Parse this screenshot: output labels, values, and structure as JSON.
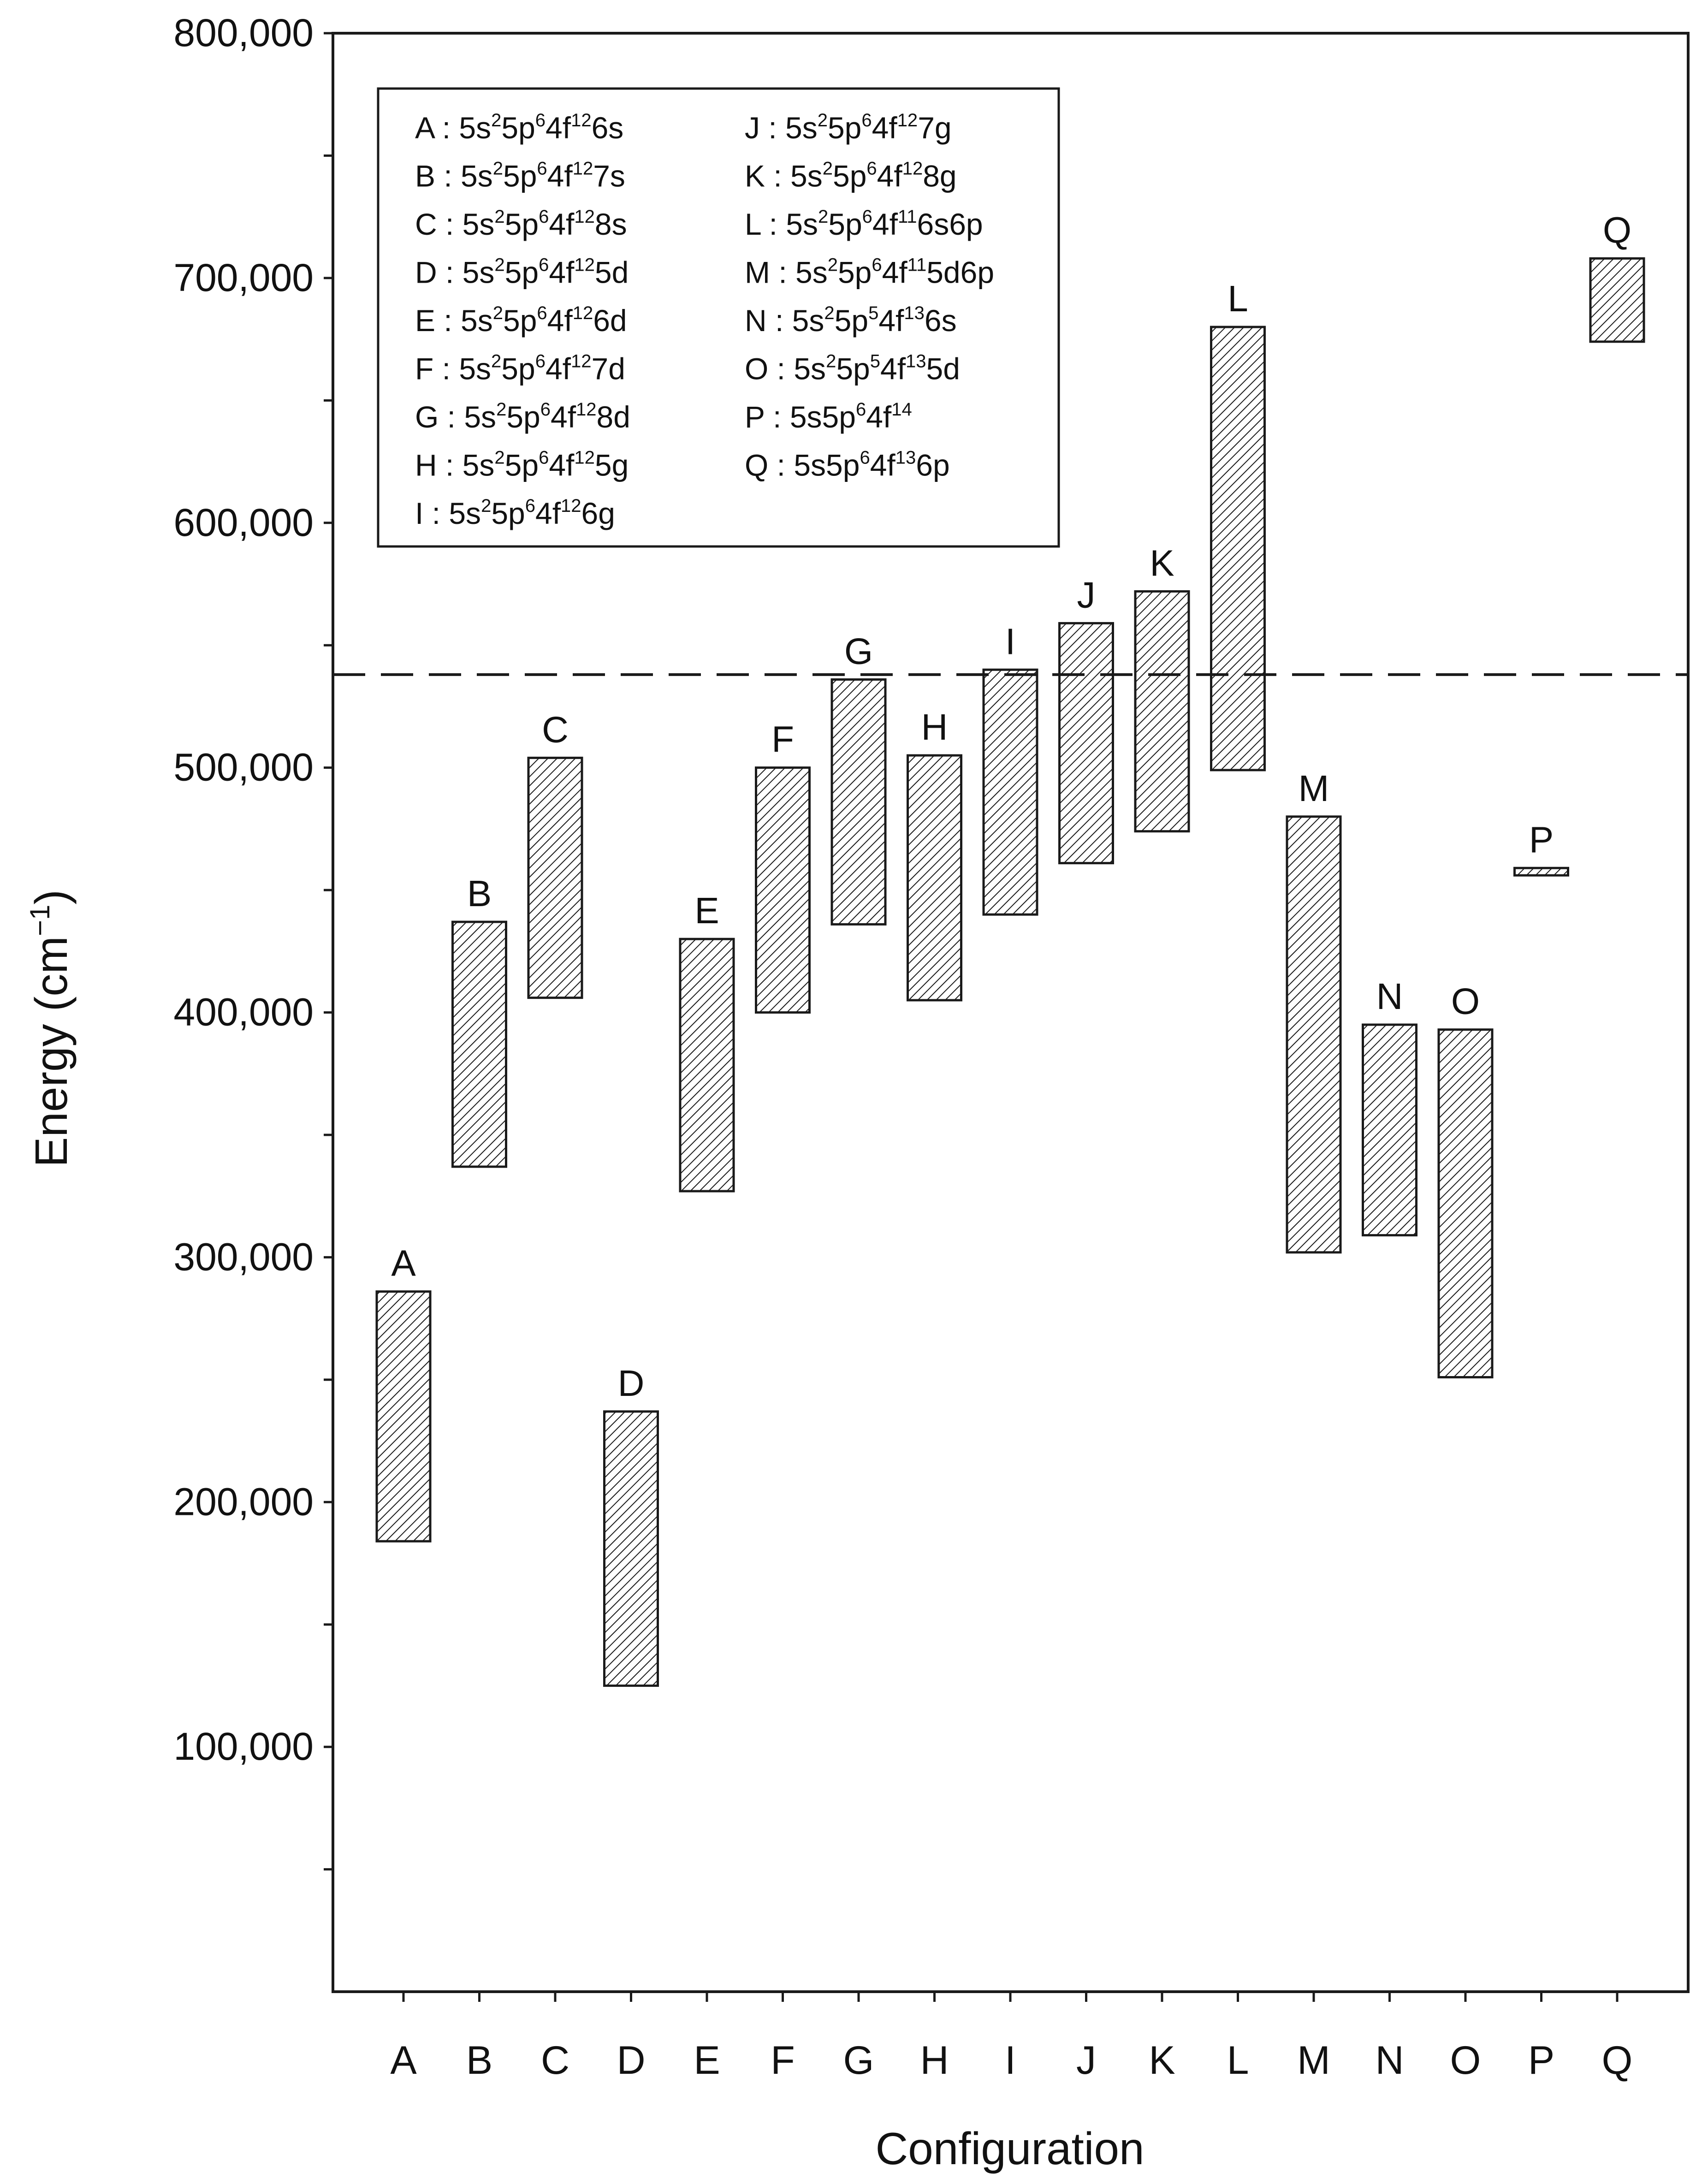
{
  "chart_data": {
    "type": "range_bar",
    "xlabel": "Configuration",
    "ylabel": "Energy (cm",
    "ylabel_sup": "−1",
    "ylabel_close": ")",
    "ylim": [
      0,
      800000
    ],
    "yticks": [
      100000,
      200000,
      300000,
      400000,
      500000,
      600000,
      700000,
      800000
    ],
    "ytick_labels": [
      "100,000",
      "200,000",
      "300,000",
      "400,000",
      "500,000",
      "600,000",
      "700,000",
      "800,000"
    ],
    "categories": [
      "A",
      "B",
      "C",
      "D",
      "E",
      "F",
      "G",
      "H",
      "I",
      "J",
      "K",
      "L",
      "M",
      "N",
      "O",
      "P",
      "Q"
    ],
    "ranges": [
      {
        "label": "A",
        "low": 184000,
        "high": 286000
      },
      {
        "label": "B",
        "low": 337000,
        "high": 437000
      },
      {
        "label": "C",
        "low": 406000,
        "high": 504000
      },
      {
        "label": "D",
        "low": 125000,
        "high": 237000
      },
      {
        "label": "E",
        "low": 327000,
        "high": 430000
      },
      {
        "label": "F",
        "low": 400000,
        "high": 500000
      },
      {
        "label": "G",
        "low": 436000,
        "high": 536000
      },
      {
        "label": "H",
        "low": 405000,
        "high": 505000
      },
      {
        "label": "I",
        "low": 440000,
        "high": 540000
      },
      {
        "label": "J",
        "low": 461000,
        "high": 559000
      },
      {
        "label": "K",
        "low": 474000,
        "high": 572000
      },
      {
        "label": "L",
        "low": 499000,
        "high": 680000
      },
      {
        "label": "M",
        "low": 302000,
        "high": 480000
      },
      {
        "label": "N",
        "low": 309000,
        "high": 395000
      },
      {
        "label": "O",
        "low": 251000,
        "high": 393000
      },
      {
        "label": "P",
        "low": 456000,
        "high": 459000
      },
      {
        "label": "Q",
        "low": 674000,
        "high": 708000
      }
    ],
    "reference_line": {
      "y": 538000,
      "style": "dashed"
    },
    "legend": {
      "placement": "top-left",
      "columns": [
        [
          [
            [
              "A : 5s",
              ""
            ],
            [
              "2",
              "sup"
            ],
            [
              "5p",
              ""
            ],
            [
              "6",
              "sup"
            ],
            [
              "4f",
              ""
            ],
            [
              "12",
              "sup"
            ],
            [
              "6s",
              ""
            ]
          ],
          [
            [
              "B : 5s",
              ""
            ],
            [
              "2",
              "sup"
            ],
            [
              "5p",
              ""
            ],
            [
              "6",
              "sup"
            ],
            [
              "4f",
              ""
            ],
            [
              "12",
              "sup"
            ],
            [
              "7s",
              ""
            ]
          ],
          [
            [
              "C : 5s",
              ""
            ],
            [
              "2",
              "sup"
            ],
            [
              "5p",
              ""
            ],
            [
              "6",
              "sup"
            ],
            [
              "4f",
              ""
            ],
            [
              "12",
              "sup"
            ],
            [
              "8s",
              ""
            ]
          ],
          [
            [
              "D : 5s",
              ""
            ],
            [
              "2",
              "sup"
            ],
            [
              "5p",
              ""
            ],
            [
              "6",
              "sup"
            ],
            [
              "4f",
              ""
            ],
            [
              "12",
              "sup"
            ],
            [
              "5d",
              ""
            ]
          ],
          [
            [
              "E : 5s",
              ""
            ],
            [
              "2",
              "sup"
            ],
            [
              "5p",
              ""
            ],
            [
              "6",
              "sup"
            ],
            [
              "4f",
              ""
            ],
            [
              "12",
              "sup"
            ],
            [
              "6d",
              ""
            ]
          ],
          [
            [
              "F : 5s",
              ""
            ],
            [
              "2",
              "sup"
            ],
            [
              "5p",
              ""
            ],
            [
              "6",
              "sup"
            ],
            [
              "4f",
              ""
            ],
            [
              "12",
              "sup"
            ],
            [
              "7d",
              ""
            ]
          ],
          [
            [
              "G : 5s",
              ""
            ],
            [
              "2",
              "sup"
            ],
            [
              "5p",
              ""
            ],
            [
              "6",
              "sup"
            ],
            [
              "4f",
              ""
            ],
            [
              "12",
              "sup"
            ],
            [
              "8d",
              ""
            ]
          ],
          [
            [
              "H : 5s",
              ""
            ],
            [
              "2",
              "sup"
            ],
            [
              "5p",
              ""
            ],
            [
              "6",
              "sup"
            ],
            [
              "4f",
              ""
            ],
            [
              "12",
              "sup"
            ],
            [
              "5g",
              ""
            ]
          ],
          [
            [
              "I : 5s",
              ""
            ],
            [
              "2",
              "sup"
            ],
            [
              "5p",
              ""
            ],
            [
              "6",
              "sup"
            ],
            [
              "4f",
              ""
            ],
            [
              "12",
              "sup"
            ],
            [
              "6g",
              ""
            ]
          ]
        ],
        [
          [
            [
              "J : 5s",
              ""
            ],
            [
              "2",
              "sup"
            ],
            [
              "5p",
              ""
            ],
            [
              "6",
              "sup"
            ],
            [
              "4f",
              ""
            ],
            [
              "12",
              "sup"
            ],
            [
              "7g",
              ""
            ]
          ],
          [
            [
              "K : 5s",
              ""
            ],
            [
              "2",
              "sup"
            ],
            [
              "5p",
              ""
            ],
            [
              "6",
              "sup"
            ],
            [
              "4f",
              ""
            ],
            [
              "12",
              "sup"
            ],
            [
              "8g",
              ""
            ]
          ],
          [
            [
              "L : 5s",
              ""
            ],
            [
              "2",
              "sup"
            ],
            [
              "5p",
              ""
            ],
            [
              "6",
              "sup"
            ],
            [
              "4f",
              ""
            ],
            [
              "11",
              "sup"
            ],
            [
              "6s6p",
              ""
            ]
          ],
          [
            [
              "M : 5s",
              ""
            ],
            [
              "2",
              "sup"
            ],
            [
              "5p",
              ""
            ],
            [
              "6",
              "sup"
            ],
            [
              "4f",
              ""
            ],
            [
              "11",
              "sup"
            ],
            [
              "5d6p",
              ""
            ]
          ],
          [
            [
              "N : 5s",
              ""
            ],
            [
              "2",
              "sup"
            ],
            [
              "5p",
              ""
            ],
            [
              "5",
              "sup"
            ],
            [
              "4f",
              ""
            ],
            [
              "13",
              "sup"
            ],
            [
              "6s",
              ""
            ]
          ],
          [
            [
              "O : 5s",
              ""
            ],
            [
              "2",
              "sup"
            ],
            [
              "5p",
              ""
            ],
            [
              "5",
              "sup"
            ],
            [
              "4f",
              ""
            ],
            [
              "13",
              "sup"
            ],
            [
              "5d",
              ""
            ]
          ],
          [
            [
              "P : 5s5p",
              ""
            ],
            [
              "6",
              "sup"
            ],
            [
              "4f",
              ""
            ],
            [
              "14",
              "sup"
            ]
          ],
          [
            [
              "Q : 5s5p",
              ""
            ],
            [
              "6",
              "sup"
            ],
            [
              "4f",
              ""
            ],
            [
              "13",
              "sup"
            ],
            [
              "6p",
              ""
            ]
          ]
        ]
      ]
    },
    "colors": {
      "bar_stroke": "#1a1a1a",
      "hatch": "#1a1a1a",
      "axis": "#1a1a1a"
    }
  }
}
